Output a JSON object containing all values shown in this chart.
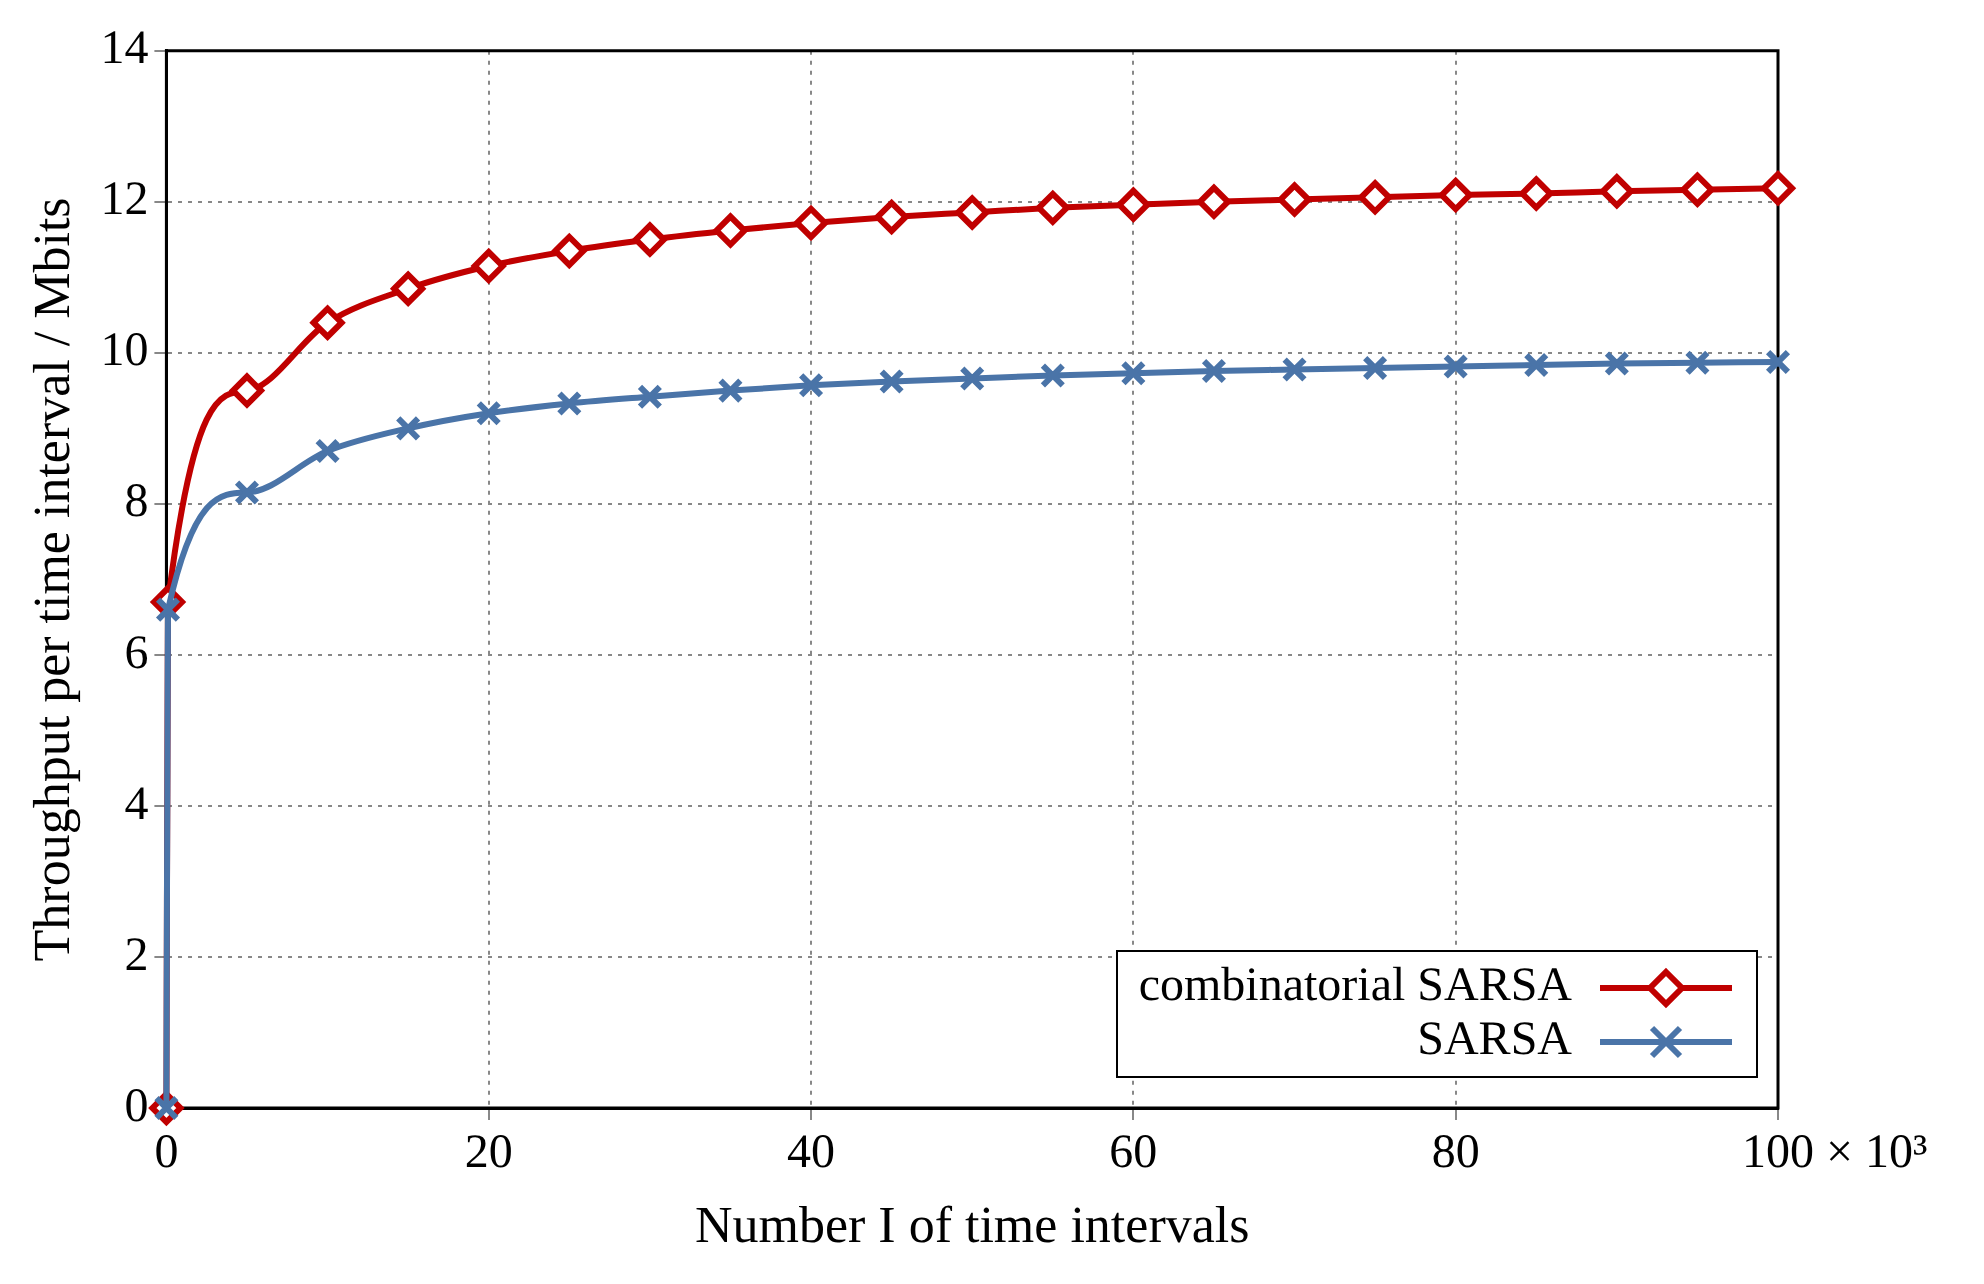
{
  "chart_data": {
    "type": "line",
    "xlabel": "Number I of time intervals",
    "ylabel": "Throughput per time interval / Mbits",
    "xlim": [
      0,
      100
    ],
    "xticks": [
      0,
      20,
      40,
      60,
      80,
      100
    ],
    "ylim": [
      0,
      14
    ],
    "yticks": [
      0,
      2,
      4,
      6,
      8,
      10,
      12,
      14
    ],
    "grid": true,
    "legend": "bottom right",
    "line_style": "solid",
    "annotations": [
      "× 10³"
    ],
    "series": [
      {
        "name": "combinatorial SARSA",
        "color": "#c00000",
        "marker": "diamond",
        "x": [
          0,
          0.1,
          5,
          10,
          15,
          20,
          25,
          30,
          35,
          40,
          45,
          50,
          55,
          60,
          65,
          70,
          75,
          80,
          85,
          90,
          95,
          100
        ],
        "values": [
          0,
          6.7,
          9.5,
          10.4,
          10.85,
          11.15,
          11.35,
          11.5,
          11.62,
          11.72,
          11.8,
          11.86,
          11.92,
          11.96,
          12.0,
          12.03,
          12.06,
          12.09,
          12.11,
          12.14,
          12.16,
          12.18
        ]
      },
      {
        "name": "SARSA",
        "color": "#4a74a8",
        "marker": "cross",
        "x": [
          0,
          0.1,
          5,
          10,
          15,
          20,
          25,
          30,
          35,
          40,
          45,
          50,
          55,
          60,
          65,
          70,
          75,
          80,
          85,
          90,
          95,
          100
        ],
        "values": [
          0,
          6.6,
          8.15,
          8.7,
          9.0,
          9.2,
          9.33,
          9.42,
          9.5,
          9.57,
          9.62,
          9.66,
          9.7,
          9.73,
          9.76,
          9.78,
          9.8,
          9.82,
          9.84,
          9.86,
          9.87,
          9.88
        ]
      }
    ]
  }
}
